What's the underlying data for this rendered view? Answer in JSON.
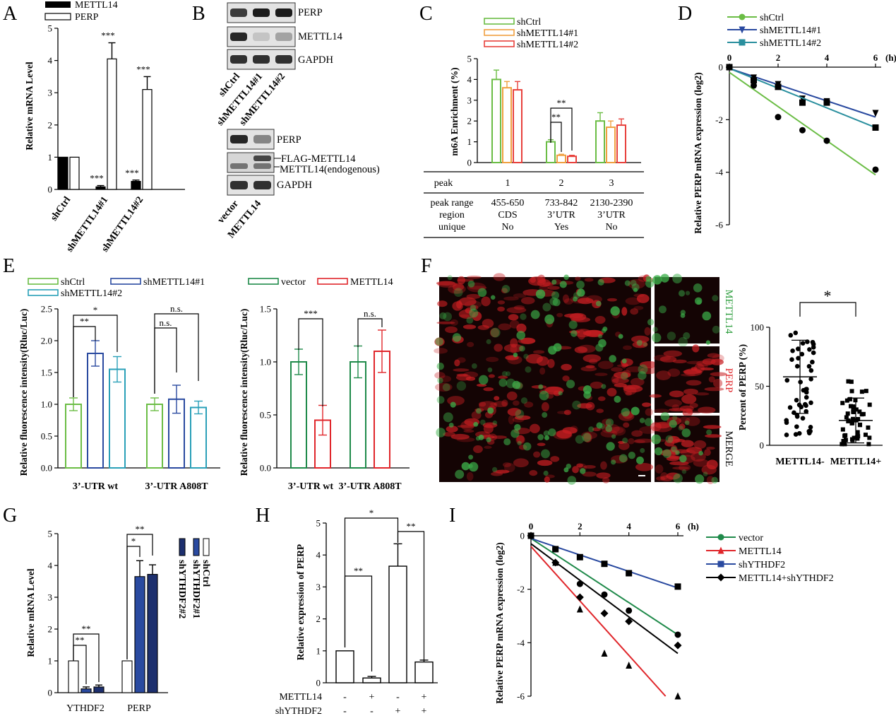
{
  "panels": {
    "A": {
      "label": "A"
    },
    "B": {
      "label": "B"
    },
    "C": {
      "label": "C"
    },
    "D": {
      "label": "D"
    },
    "E": {
      "label": "E"
    },
    "F": {
      "label": "F"
    },
    "G": {
      "label": "G"
    },
    "H": {
      "label": "H"
    },
    "I": {
      "label": "I"
    }
  },
  "blots": {
    "top_bands": [
      "PERP",
      "METTL14",
      "GAPDH"
    ],
    "top_samples": [
      "shCtrl",
      "shMETTL14#1",
      "shMETTL14#2"
    ],
    "bottom_bands": [
      "PERP",
      "FLAG-METTL14",
      "METTL14(endogenous)",
      "GAPDH"
    ],
    "bottom_samples": [
      "vector",
      "METTL14"
    ]
  },
  "table_c": {
    "rows": [
      [
        "peak",
        "1",
        "2",
        "3"
      ],
      [
        "peak range",
        "455-650",
        "733-842",
        "2130-2390"
      ],
      [
        "region",
        "CDS",
        "3’UTR",
        "3’UTR"
      ],
      [
        "unique",
        "No",
        "Yes",
        "No"
      ]
    ]
  },
  "imaging_f": {
    "channels": [
      "METTL14",
      "PERP",
      "MERGE"
    ],
    "colors": {
      "green": "#2e9e3e",
      "red": "#e0262b"
    }
  },
  "chart_data": [
    {
      "panel": "A",
      "type": "bar",
      "ylabel": "Relative mRNA Level",
      "ylim": [
        0,
        5
      ],
      "yticks": [
        0,
        1,
        2,
        3,
        4,
        5
      ],
      "categories": [
        "shCtrl",
        "shMETTL14#1",
        "shMETTL14#2"
      ],
      "series": [
        {
          "name": "METTL14",
          "color": "#000000",
          "values": [
            1.0,
            0.08,
            0.25
          ],
          "errors": [
            0,
            0.04,
            0.04
          ],
          "sig": [
            "",
            "***",
            "***"
          ]
        },
        {
          "name": "PERP",
          "color": "#ffffff",
          "values": [
            1.0,
            4.05,
            3.1
          ],
          "errors": [
            0,
            0.5,
            0.4
          ],
          "sig": [
            "",
            "***",
            "***"
          ]
        }
      ]
    },
    {
      "panel": "C",
      "type": "bar",
      "ylabel": "m6A Enrichment (%)",
      "ylim": [
        0,
        5
      ],
      "yticks": [
        0,
        1,
        2,
        3,
        4,
        5
      ],
      "categories": [
        "1",
        "2",
        "3"
      ],
      "series": [
        {
          "name": "shCtrl",
          "color": "#6bbd45",
          "values": [
            4.0,
            1.0,
            2.0
          ],
          "errors": [
            0.45,
            0.1,
            0.4
          ]
        },
        {
          "name": "shMETTL14#1",
          "color": "#f0a040",
          "values": [
            3.6,
            0.35,
            1.7
          ],
          "errors": [
            0.3,
            0.05,
            0.3
          ]
        },
        {
          "name": "shMETTL14#2",
          "color": "#e8413c",
          "values": [
            3.5,
            0.3,
            1.8
          ],
          "errors": [
            0.4,
            0.05,
            0.3
          ]
        }
      ],
      "significance": [
        "**",
        "**"
      ]
    },
    {
      "panel": "D",
      "type": "scatter",
      "ylabel": "Relative PERP mRNA expression (log2)",
      "xunit": "(h)",
      "xlim": [
        0,
        6
      ],
      "ylim": [
        -6,
        0
      ],
      "xticks": [
        0,
        2,
        4,
        6
      ],
      "yticks": [
        0,
        -2,
        -4,
        -6
      ],
      "series": [
        {
          "name": "shCtrl",
          "color": "#6bbd45",
          "marker": "circle",
          "points": [
            [
              0,
              0
            ],
            [
              1,
              -0.7
            ],
            [
              2,
              -1.9
            ],
            [
              3,
              -2.4
            ],
            [
              4,
              -2.8
            ],
            [
              6,
              -3.9
            ]
          ],
          "fit": [
            [
              0,
              -0.2
            ],
            [
              6,
              -4.1
            ]
          ]
        },
        {
          "name": "shMETTL14#1",
          "color": "#2a4aa0",
          "marker": "triangle-down",
          "points": [
            [
              0,
              0
            ],
            [
              1,
              -0.4
            ],
            [
              2,
              -0.65
            ],
            [
              3,
              -1.2
            ],
            [
              4,
              -1.3
            ],
            [
              6,
              -1.75
            ]
          ],
          "fit": [
            [
              0,
              -0.05
            ],
            [
              6,
              -1.9
            ]
          ]
        },
        {
          "name": "shMETTL14#2",
          "color": "#2a8f9e",
          "marker": "square",
          "points": [
            [
              0,
              0
            ],
            [
              1,
              -0.5
            ],
            [
              2,
              -0.75
            ],
            [
              3,
              -1.35
            ],
            [
              4,
              -1.35
            ],
            [
              6,
              -2.3
            ]
          ],
          "fit": [
            [
              0,
              -0.05
            ],
            [
              6,
              -2.3
            ]
          ]
        }
      ]
    },
    {
      "panel": "E1",
      "type": "bar",
      "ylabel": "Relative  fluorescence intensity(Rluc/Luc)",
      "ylim": [
        0,
        2.5
      ],
      "yticks": [
        0.0,
        0.5,
        1.0,
        1.5,
        2.0,
        2.5
      ],
      "categories": [
        "3’-UTR wt",
        "3’-UTR A808T"
      ],
      "series": [
        {
          "name": "shCtrl",
          "color": "#6bbd45",
          "values": [
            1.0,
            1.0
          ],
          "errors": [
            0.1,
            0.1
          ]
        },
        {
          "name": "shMETTL14#1",
          "color": "#2a4aa0",
          "values": [
            1.8,
            1.08
          ],
          "errors": [
            0.2,
            0.22
          ]
        },
        {
          "name": "shMETTL14#2",
          "color": "#2aa0b8",
          "values": [
            1.55,
            0.95
          ],
          "errors": [
            0.2,
            0.1
          ]
        }
      ],
      "significance": [
        "**",
        "*",
        "n.s.",
        "n.s."
      ]
    },
    {
      "panel": "E2",
      "type": "bar",
      "ylabel": "Relative  fluorescence intensity(Rluc/Luc)",
      "ylim": [
        0,
        1.5
      ],
      "yticks": [
        0.0,
        0.5,
        1.0,
        1.5
      ],
      "categories": [
        "3’-UTR wt",
        "3’-UTR A808T"
      ],
      "series": [
        {
          "name": "vector",
          "color": "#1f8a4a",
          "values": [
            1.0,
            1.0
          ],
          "errors": [
            0.12,
            0.15
          ]
        },
        {
          "name": "METTL14",
          "color": "#e0262b",
          "values": [
            0.45,
            1.1
          ],
          "errors": [
            0.14,
            0.2
          ]
        }
      ],
      "significance": [
        "***",
        "n.s."
      ]
    },
    {
      "panel": "F",
      "type": "scatter",
      "ylabel": "Percent of PERP (%)",
      "ylim": [
        0,
        100
      ],
      "yticks": [
        0,
        50,
        100
      ],
      "categories": [
        "METTL14-",
        "METTL14+"
      ],
      "means": [
        58,
        21
      ],
      "sd": [
        31,
        19
      ],
      "significance": "*"
    },
    {
      "panel": "G",
      "type": "bar",
      "ylabel": "Relative mRNA Level",
      "ylim": [
        0,
        5
      ],
      "yticks": [
        0,
        1,
        2,
        3,
        4,
        5
      ],
      "categories": [
        "YTHDF2",
        "PERP"
      ],
      "series": [
        {
          "name": "shCtrl",
          "color": "#ffffff",
          "values": [
            1.0,
            1.0
          ],
          "errors": [
            0,
            0
          ]
        },
        {
          "name": "shYTHDF2#1",
          "color": "#2a4aa0",
          "values": [
            0.12,
            3.65
          ],
          "errors": [
            0.06,
            0.5
          ]
        },
        {
          "name": "shYTHDF2#2",
          "color": "#1d2f6e",
          "values": [
            0.18,
            3.72
          ],
          "errors": [
            0.06,
            0.3
          ]
        }
      ],
      "significance": [
        "**",
        "**",
        "*",
        "**"
      ]
    },
    {
      "panel": "H",
      "type": "bar",
      "ylabel": "Relative expression of PERP",
      "ylim": [
        0,
        5
      ],
      "yticks": [
        0,
        1,
        2,
        3,
        4,
        5
      ],
      "values": [
        1.0,
        0.15,
        3.65,
        0.65
      ],
      "errors": [
        0,
        0.05,
        0.7,
        0.06
      ],
      "rows": [
        {
          "name": "METTL14",
          "marks": [
            "-",
            "+",
            "-",
            "+"
          ]
        },
        {
          "name": "shYTHDF2",
          "marks": [
            "-",
            "-",
            "+",
            "+"
          ]
        }
      ],
      "significance": [
        "**",
        "*",
        "**"
      ]
    },
    {
      "panel": "I",
      "type": "scatter",
      "ylabel": "Relative PERP mRNA expression (log2)",
      "xunit": "(h)",
      "xlim": [
        0,
        6
      ],
      "ylim": [
        -6,
        0
      ],
      "xticks": [
        0,
        2,
        4,
        6
      ],
      "yticks": [
        0,
        -2,
        -4,
        -6
      ],
      "series": [
        {
          "name": "vector",
          "color": "#1f8a4a",
          "marker": "circle",
          "points": [
            [
              0,
              0
            ],
            [
              1,
              -0.5
            ],
            [
              2,
              -1.8
            ],
            [
              3,
              -2.2
            ],
            [
              4,
              -2.8
            ],
            [
              6,
              -3.7
            ]
          ],
          "fit": [
            [
              0,
              -0.1
            ],
            [
              6,
              -3.7
            ]
          ]
        },
        {
          "name": "METTL14",
          "color": "#e0262b",
          "marker": "triangle",
          "points": [
            [
              0,
              0
            ],
            [
              1,
              -1.0
            ],
            [
              2,
              -2.75
            ],
            [
              3,
              -4.4
            ],
            [
              4,
              -4.85
            ],
            [
              6,
              -6.0
            ]
          ],
          "fit": [
            [
              0,
              -0.4
            ],
            [
              5.5,
              -6.0
            ]
          ]
        },
        {
          "name": "shYTHDF2",
          "color": "#2a4aa0",
          "marker": "square",
          "points": [
            [
              0,
              0
            ],
            [
              1,
              -0.5
            ],
            [
              2,
              -0.8
            ],
            [
              3,
              -1.05
            ],
            [
              4,
              -1.4
            ],
            [
              6,
              -1.9
            ]
          ],
          "fit": [
            [
              0,
              -0.1
            ],
            [
              6,
              -1.95
            ]
          ]
        },
        {
          "name": "METTL14+shYTHDF2",
          "color": "#000000",
          "marker": "diamond",
          "points": [
            [
              0,
              0
            ],
            [
              1,
              -1.0
            ],
            [
              2,
              -2.3
            ],
            [
              3,
              -2.9
            ],
            [
              4,
              -3.2
            ],
            [
              6,
              -4.1
            ]
          ],
          "fit": [
            [
              0,
              -0.3
            ],
            [
              6,
              -4.4
            ]
          ]
        }
      ]
    }
  ]
}
